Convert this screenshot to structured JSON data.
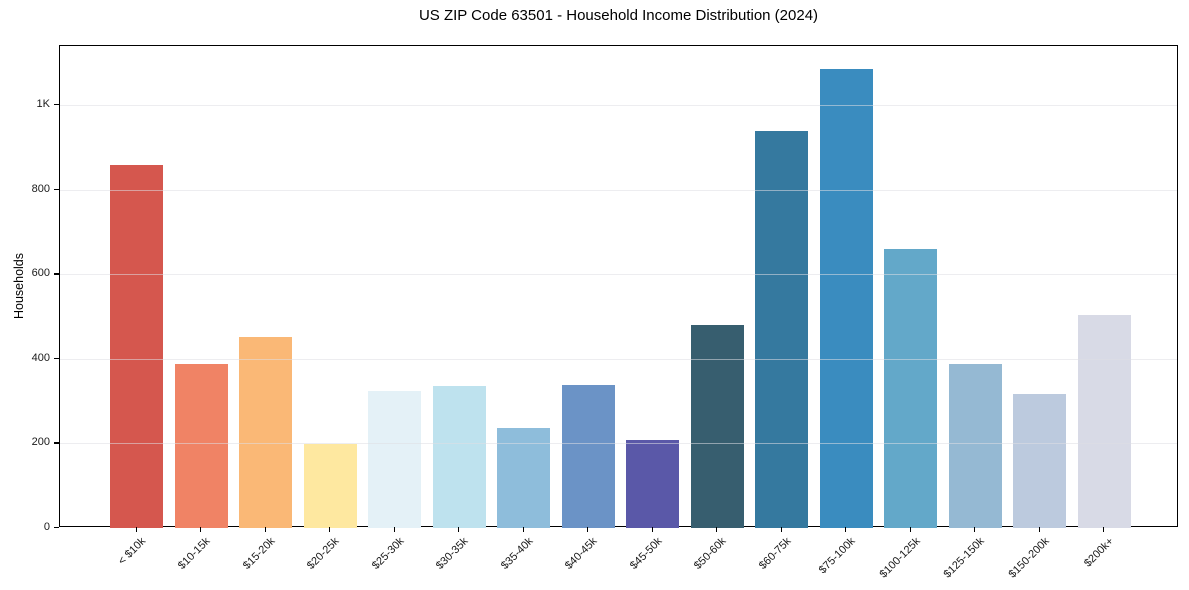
{
  "figure": {
    "title": "US ZIP Code 63501 - Household Income Distribution (2024)",
    "ylabel": "Households"
  },
  "chart_data": {
    "type": "bar",
    "title": "US ZIP Code 63501 - Household Income Distribution (2024)",
    "xlabel": "",
    "ylabel": "Households",
    "categories": [
      "< $10k",
      "$10-15k",
      "$15-20k",
      "$20-25k",
      "$25-30k",
      "$30-35k",
      "$35-40k",
      "$40-45k",
      "$45-50k",
      "$50-60k",
      "$60-75k",
      "$75-100k",
      "$100-125k",
      "$125-150k",
      "$150-200k",
      "$200k+"
    ],
    "values": [
      858,
      388,
      452,
      198,
      325,
      336,
      237,
      338,
      208,
      479,
      938,
      1085,
      661,
      388,
      317,
      504
    ],
    "bar_colors": [
      "#d5574e",
      "#f08365",
      "#fab876",
      "#fee8a0",
      "#e4f1f7",
      "#bee2ee",
      "#8ebddb",
      "#6b93c6",
      "#5a58a8",
      "#375e6f",
      "#35799f",
      "#3a8cbf",
      "#63a8c9",
      "#95b9d3",
      "#bccade",
      "#d8dae6"
    ],
    "ylim": [
      0,
      1140
    ],
    "yticks": [
      {
        "value": 0,
        "label": "0"
      },
      {
        "value": 200,
        "label": "200"
      },
      {
        "value": 400,
        "label": "400"
      },
      {
        "value": 600,
        "label": "600"
      },
      {
        "value": 800,
        "label": "800"
      },
      {
        "value": 1000,
        "label": "1K"
      }
    ],
    "grid": "horizontal",
    "legend": "none",
    "background_color": "#ffffff",
    "axis_color": "#000000",
    "grid_color": "#dedee4",
    "tick_label_color": "#1a1a1a"
  }
}
